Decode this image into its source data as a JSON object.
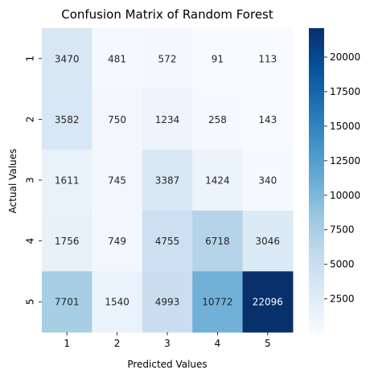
{
  "chart_data": {
    "type": "heatmap",
    "title": "Confusion Matrix of Random Forest",
    "xlabel": "Predicted Values",
    "ylabel": "Actual Values",
    "x_categories": [
      "1",
      "2",
      "3",
      "4",
      "5"
    ],
    "y_categories": [
      "1",
      "2",
      "3",
      "4",
      "5"
    ],
    "values": [
      [
        3470,
        481,
        572,
        91,
        113
      ],
      [
        3582,
        750,
        1234,
        258,
        143
      ],
      [
        1611,
        745,
        3387,
        1424,
        340
      ],
      [
        1756,
        749,
        4755,
        6718,
        3046
      ],
      [
        7701,
        1540,
        4993,
        10772,
        22096
      ]
    ],
    "value_range": [
      91,
      22096
    ],
    "colormap": "Blues",
    "colorbar": {
      "ticks": [
        2500,
        5000,
        7500,
        10000,
        12500,
        15000,
        17500,
        20000
      ]
    },
    "grid": false
  }
}
